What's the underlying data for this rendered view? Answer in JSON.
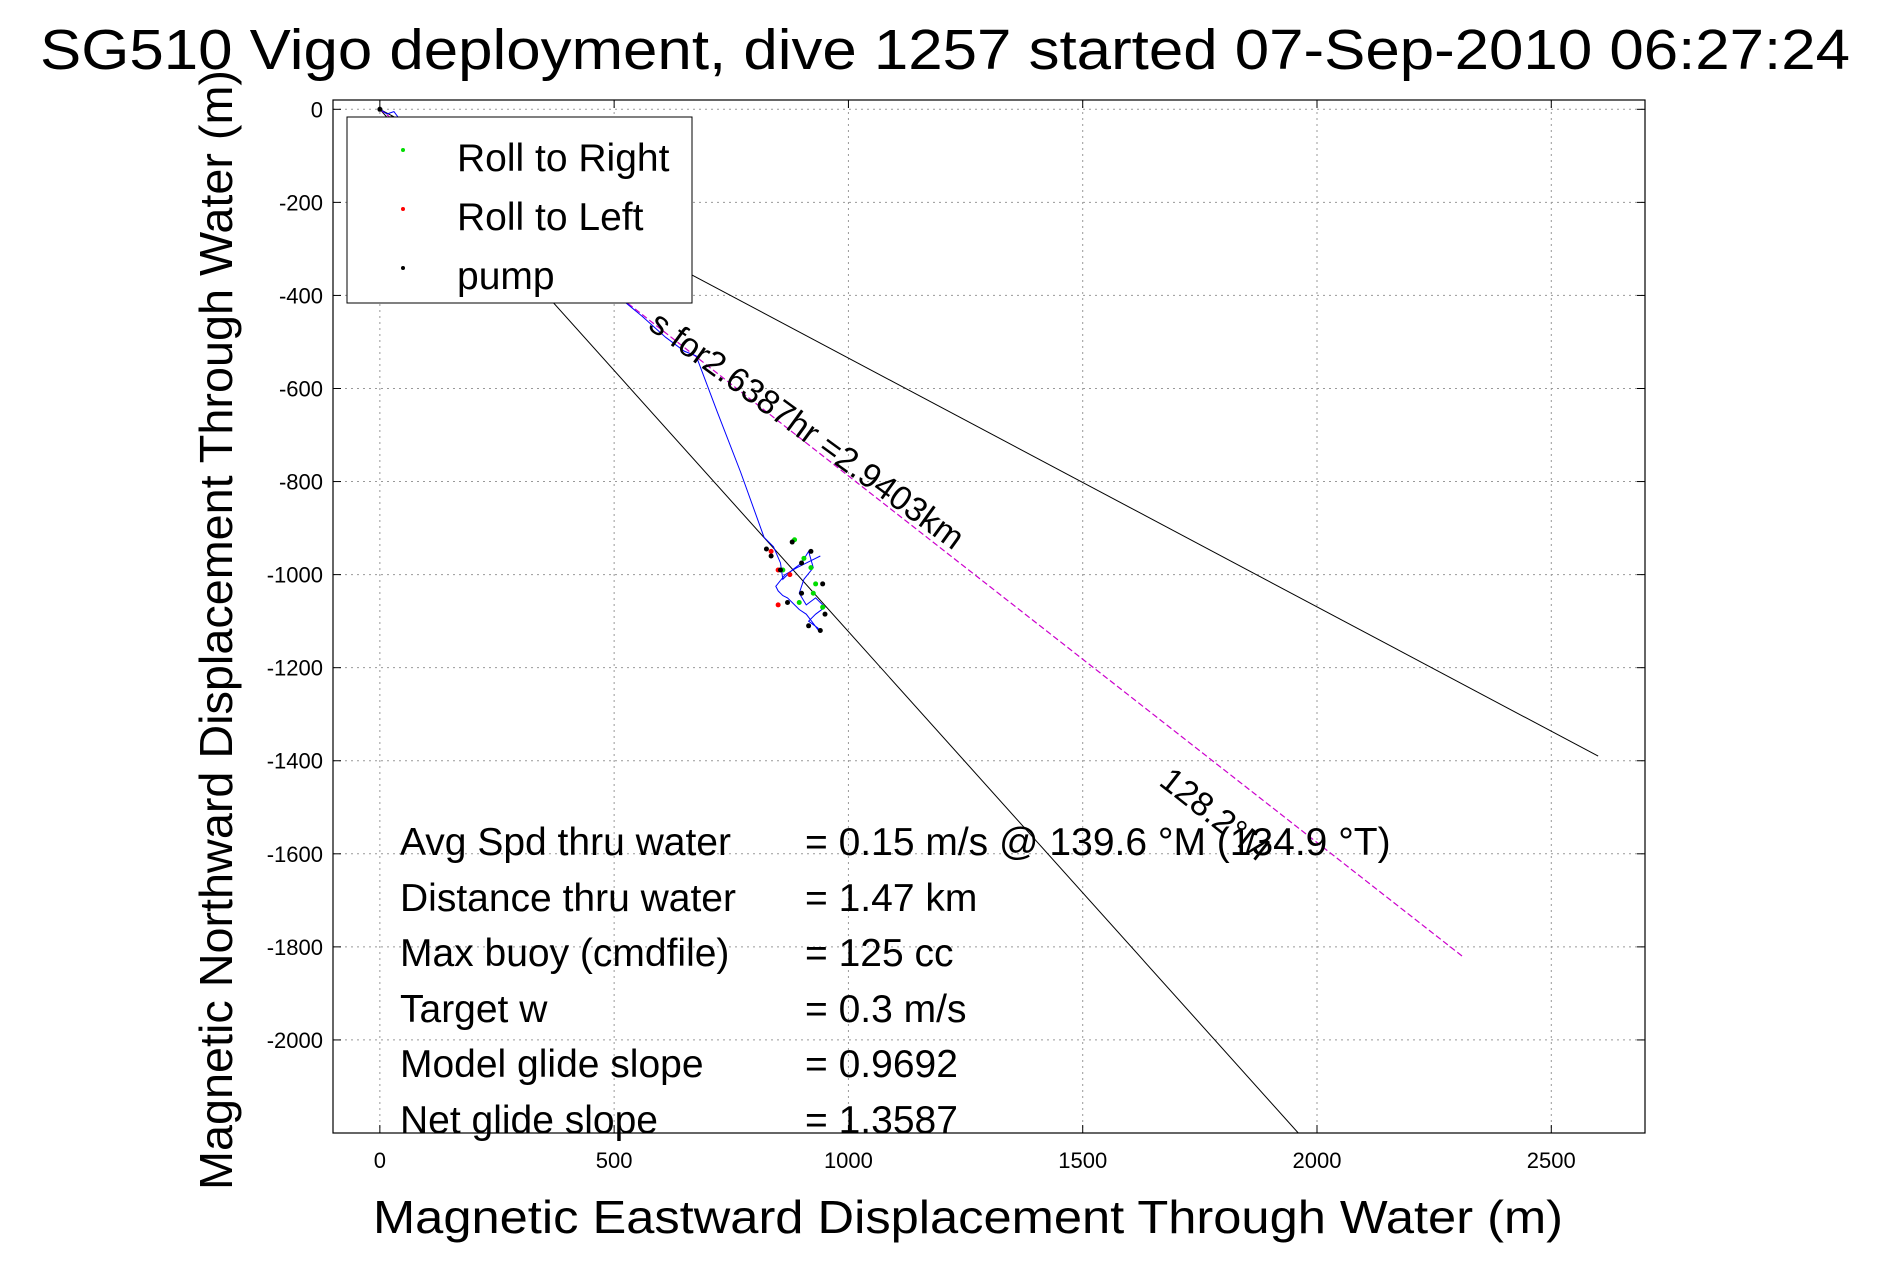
{
  "chart_data": {
    "type": "line",
    "title": "SG510 Vigo deployment, dive 1257 started 07-Sep-2010 06:27:24",
    "xlabel": "Magnetic Eastward Displacement Through Water (m)",
    "ylabel": "Magnetic Northward Displacement Through Water (m)",
    "xlim": [
      -100,
      2700
    ],
    "ylim": [
      -2200,
      20
    ],
    "x_ticks": [
      0,
      500,
      1000,
      1500,
      2000,
      2500
    ],
    "y_ticks": [
      0,
      -200,
      -400,
      -600,
      -800,
      -1000,
      -1200,
      -1400,
      -1600,
      -1800,
      -2000
    ],
    "grid": true,
    "legend_position": "top-left",
    "legend": [
      {
        "label": "Roll to Right",
        "color": "#00dd00"
      },
      {
        "label": "Roll to Left",
        "color": "#ff0000"
      },
      {
        "label": "pump",
        "color": "#000000"
      }
    ],
    "guide_lines": [
      {
        "x": [
          0,
          2600
        ],
        "y": [
          0,
          -1390
        ],
        "color": "#000000"
      },
      {
        "x": [
          0,
          1960
        ],
        "y": [
          0,
          -2200
        ],
        "color": "#000000"
      }
    ],
    "heading_line": {
      "x": [
        0,
        2310
      ],
      "y": [
        0,
        -1820
      ],
      "color": "#cc00cc"
    },
    "dive_track": {
      "color": "#0000ff",
      "x": [
        0,
        15,
        30,
        45,
        65,
        90,
        120,
        160,
        210,
        260,
        320,
        380,
        440,
        500,
        560,
        610,
        650,
        675,
        720,
        770,
        820,
        840,
        855,
        860,
        880,
        900,
        915,
        925,
        905,
        895,
        910,
        930,
        950,
        930,
        915,
        935,
        940,
        925,
        910,
        895,
        880,
        870,
        860,
        850,
        845,
        865,
        890,
        920,
        940
      ],
      "y": [
        0,
        -10,
        -5,
        -25,
        -40,
        -60,
        -85,
        -115,
        -150,
        -190,
        -235,
        -285,
        -340,
        -395,
        -445,
        -490,
        -520,
        -530,
        -650,
        -780,
        -920,
        -940,
        -975,
        -1010,
        -990,
        -975,
        -950,
        -985,
        -1010,
        -1040,
        -1065,
        -1050,
        -1070,
        -1085,
        -1100,
        -1115,
        -1125,
        -1105,
        -1085,
        -1075,
        -1060,
        -1050,
        -1045,
        -1035,
        -1025,
        -1000,
        -985,
        -970,
        -960
      ]
    },
    "markers": {
      "roll_right": {
        "x": [
          885,
          905,
          920,
          930,
          945,
          925,
          895,
          860
        ],
        "y": [
          -925,
          -965,
          -985,
          -1020,
          -1070,
          -1040,
          -1060,
          -990
        ]
      },
      "roll_left": {
        "x": [
          850,
          835,
          850,
          875
        ],
        "y": [
          -990,
          -950,
          -1065,
          -1000
        ]
      },
      "pump": {
        "x": [
          0,
          25,
          825,
          835,
          855,
          880,
          900,
          920,
          945,
          950,
          915,
          940,
          900,
          870
        ],
        "y": [
          0,
          -20,
          -945,
          -960,
          -990,
          -930,
          -975,
          -950,
          -1020,
          -1085,
          -1110,
          -1120,
          -1040,
          -1060
        ]
      }
    },
    "annotations": [
      {
        "text": "s for2.6387hr =2.9403km",
        "x": 570,
        "y": -470,
        "rotation": 36
      },
      {
        "text": "128.2°M",
        "x": 1660,
        "y": -1450,
        "rotation": 38
      }
    ],
    "stats": [
      {
        "label": "Avg Spd thru water",
        "value": "=  0.15 m/s @ 139.6 °M (134.9 °T)"
      },
      {
        "label": "Distance thru water",
        "value": "=  1.47 km"
      },
      {
        "label": "Max buoy (cmdfile)",
        "value": "= 125 cc"
      },
      {
        "label": "Target w",
        "value": "= 0.3 m/s"
      },
      {
        "label": "Model glide slope",
        "value": "= 0.9692"
      },
      {
        "label": "Net glide slope",
        "value": "= 1.3587"
      }
    ]
  }
}
